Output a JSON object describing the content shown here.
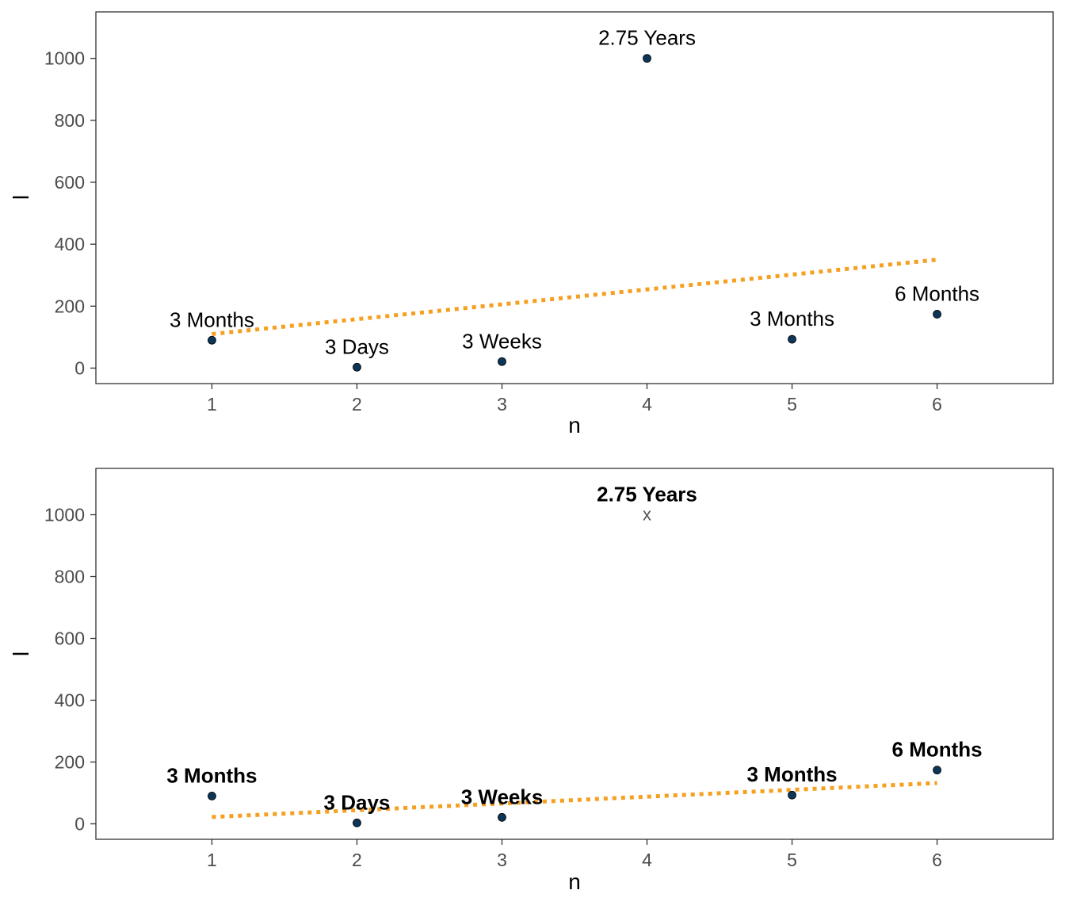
{
  "chart_data": [
    {
      "type": "scatter",
      "x": [
        1,
        2,
        3,
        4,
        5,
        6
      ],
      "y": [
        90,
        3,
        21,
        1000,
        93,
        174
      ],
      "point_labels": [
        "3 Months",
        "3 Days",
        "3 Weeks",
        "2.75 Years",
        "3 Months",
        "6 Months"
      ],
      "excluded_points": [],
      "label_style": "normal",
      "trend": {
        "x": [
          1,
          6
        ],
        "y": [
          110,
          350
        ],
        "style": "dotted"
      },
      "xlabel": "n",
      "ylabel": "l",
      "xticks": [
        1,
        2,
        3,
        4,
        5,
        6
      ],
      "yticks": [
        0,
        200,
        400,
        600,
        800,
        1000
      ],
      "xlim": [
        0.2,
        6.8
      ],
      "ylim": [
        -50,
        1150
      ],
      "grid": false
    },
    {
      "type": "scatter",
      "x": [
        1,
        2,
        3,
        4,
        5,
        6
      ],
      "y": [
        90,
        3,
        21,
        1000,
        93,
        174
      ],
      "point_labels": [
        "3 Months",
        "3 Days",
        "3 Weeks",
        "2.75 Years",
        "3 Months",
        "6 Months"
      ],
      "excluded_points": [
        4
      ],
      "excluded_marker": "x",
      "label_style": "bold",
      "trend": {
        "x": [
          1,
          1.5,
          2,
          2.5,
          3,
          3.5,
          4,
          4.5,
          5,
          5.5,
          6
        ],
        "y": [
          22,
          33,
          44,
          55,
          66,
          77,
          88,
          99,
          110,
          121,
          132
        ],
        "style": "dotted"
      },
      "xlabel": "n",
      "ylabel": "l",
      "xticks": [
        1,
        2,
        3,
        4,
        5,
        6
      ],
      "yticks": [
        0,
        200,
        400,
        600,
        800,
        1000
      ],
      "xlim": [
        0.2,
        6.8
      ],
      "ylim": [
        -50,
        1150
      ],
      "grid": false
    }
  ],
  "colors": {
    "point": "#0d3556",
    "trend": "#f5a020",
    "axis": "#333333",
    "tick_text": "#4d4d4d"
  }
}
